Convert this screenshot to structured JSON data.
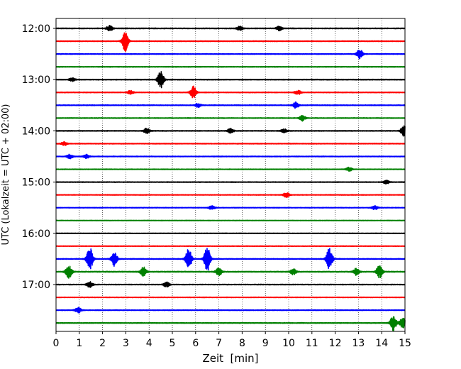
{
  "chart_data": {
    "type": "line",
    "title": "",
    "xlabel": "Zeit  [min]",
    "ylabel": "UTC (Lokalzeit = UTC + 02:00)",
    "xlim": [
      0,
      15
    ],
    "x_ticks": [
      "0",
      "1",
      "2",
      "3",
      "4",
      "5",
      "6",
      "7",
      "8",
      "9",
      "10",
      "11",
      "12",
      "13",
      "14",
      "15"
    ],
    "y_tick_labels": [
      "12:00",
      "13:00",
      "14:00",
      "15:00",
      "16:00",
      "17:00"
    ],
    "grid": "vertical dotted lines at each minute",
    "legend": "none",
    "color_cycle": [
      "#000000",
      "#ff0000",
      "#0000ff",
      "#008000"
    ],
    "trace_interval_minutes": 15,
    "traces": [
      {
        "start": "12:00",
        "color": "#000000",
        "noise": 0.05,
        "bursts": [
          {
            "x": 2.3,
            "amp": 0.45
          },
          {
            "x": 7.9,
            "amp": 0.3
          },
          {
            "x": 9.6,
            "amp": 0.35
          }
        ]
      },
      {
        "start": "12:15",
        "color": "#ff0000",
        "noise": 0.045,
        "bursts": [
          {
            "x": 2.97,
            "amp": 1.6
          }
        ]
      },
      {
        "start": "12:30",
        "color": "#0000ff",
        "noise": 0.045,
        "bursts": [
          {
            "x": 13.05,
            "amp": 0.8
          }
        ]
      },
      {
        "start": "12:45",
        "color": "#008000",
        "noise": 0.045,
        "bursts": []
      },
      {
        "start": "13:00",
        "color": "#000000",
        "noise": 0.05,
        "bursts": [
          {
            "x": 4.5,
            "amp": 1.3
          },
          {
            "x": 0.7,
            "amp": 0.25
          }
        ]
      },
      {
        "start": "13:15",
        "color": "#ff0000",
        "noise": 0.045,
        "bursts": [
          {
            "x": 5.9,
            "amp": 1.0
          },
          {
            "x": 3.2,
            "amp": 0.3
          },
          {
            "x": 10.4,
            "amp": 0.35
          }
        ]
      },
      {
        "start": "13:30",
        "color": "#0000ff",
        "noise": 0.05,
        "bursts": [
          {
            "x": 10.3,
            "amp": 0.45
          },
          {
            "x": 6.1,
            "amp": 0.3
          }
        ]
      },
      {
        "start": "13:45",
        "color": "#008000",
        "noise": 0.045,
        "bursts": [
          {
            "x": 10.6,
            "amp": 0.45
          }
        ]
      },
      {
        "start": "14:00",
        "color": "#000000",
        "noise": 0.045,
        "bursts": [
          {
            "x": 14.95,
            "amp": 0.8
          },
          {
            "x": 7.5,
            "amp": 0.4
          },
          {
            "x": 3.9,
            "amp": 0.4
          },
          {
            "x": 9.8,
            "amp": 0.3
          }
        ]
      },
      {
        "start": "14:15",
        "color": "#ff0000",
        "noise": 0.045,
        "bursts": [
          {
            "x": 0.35,
            "amp": 0.3
          }
        ]
      },
      {
        "start": "14:30",
        "color": "#0000ff",
        "noise": 0.045,
        "bursts": [
          {
            "x": 0.6,
            "amp": 0.35
          },
          {
            "x": 1.3,
            "amp": 0.3
          }
        ]
      },
      {
        "start": "14:45",
        "color": "#008000",
        "noise": 0.04,
        "bursts": [
          {
            "x": 12.6,
            "amp": 0.3
          }
        ]
      },
      {
        "start": "15:00",
        "color": "#000000",
        "noise": 0.04,
        "bursts": [
          {
            "x": 14.2,
            "amp": 0.3
          }
        ]
      },
      {
        "start": "15:15",
        "color": "#ff0000",
        "noise": 0.04,
        "bursts": [
          {
            "x": 9.9,
            "amp": 0.4
          }
        ]
      },
      {
        "start": "15:30",
        "color": "#0000ff",
        "noise": 0.04,
        "bursts": [
          {
            "x": 6.7,
            "amp": 0.3
          },
          {
            "x": 13.7,
            "amp": 0.3
          }
        ]
      },
      {
        "start": "15:45",
        "color": "#008000",
        "noise": 0.035,
        "bursts": []
      },
      {
        "start": "16:00",
        "color": "#000000",
        "noise": 0.035,
        "bursts": []
      },
      {
        "start": "16:15",
        "color": "#ff0000",
        "noise": 0.035,
        "bursts": []
      },
      {
        "start": "16:30",
        "color": "#0000ff",
        "noise": 0.05,
        "bursts": [
          {
            "x": 1.45,
            "amp": 1.8
          },
          {
            "x": 2.5,
            "amp": 1.1
          },
          {
            "x": 5.7,
            "amp": 1.6
          },
          {
            "x": 6.5,
            "amp": 1.9
          },
          {
            "x": 11.75,
            "amp": 1.7
          }
        ]
      },
      {
        "start": "16:45",
        "color": "#008000",
        "noise": 0.06,
        "bursts": [
          {
            "x": 0.55,
            "amp": 1.0
          },
          {
            "x": 3.75,
            "amp": 0.75
          },
          {
            "x": 7.0,
            "amp": 0.6
          },
          {
            "x": 10.2,
            "amp": 0.45
          },
          {
            "x": 12.9,
            "amp": 0.55
          },
          {
            "x": 13.9,
            "amp": 1.0
          }
        ]
      },
      {
        "start": "17:00",
        "color": "#000000",
        "noise": 0.045,
        "bursts": [
          {
            "x": 1.45,
            "amp": 0.45
          },
          {
            "x": 4.75,
            "amp": 0.4
          }
        ]
      },
      {
        "start": "17:15",
        "color": "#ff0000",
        "noise": 0.04,
        "bursts": []
      },
      {
        "start": "17:30",
        "color": "#0000ff",
        "noise": 0.045,
        "bursts": [
          {
            "x": 0.95,
            "amp": 0.45
          }
        ]
      },
      {
        "start": "17:45",
        "color": "#008000",
        "noise": 0.05,
        "bursts": [
          {
            "x": 14.5,
            "amp": 1.2
          },
          {
            "x": 14.9,
            "amp": 0.8
          }
        ]
      }
    ]
  }
}
